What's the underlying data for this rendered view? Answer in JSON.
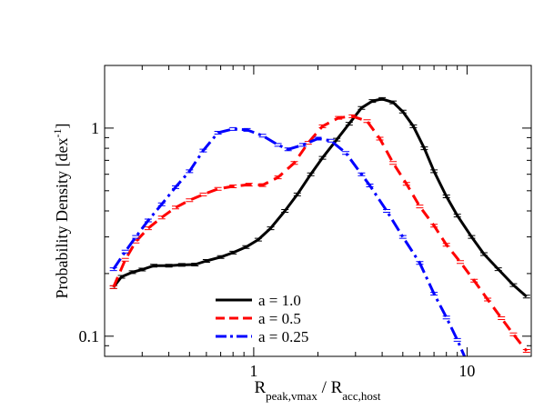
{
  "chart_data": {
    "type": "line",
    "title": "",
    "xlabel": {
      "base": "R",
      "sub1": "peak,vmax",
      "mid": " / R",
      "sub2": "acc,host"
    },
    "ylabel": {
      "text": "Probability Density [dex",
      "sup": "-1",
      "close": "]"
    },
    "x_scale": "log",
    "y_scale": "log",
    "xlim": [
      0.2,
      20
    ],
    "ylim": [
      0.08,
      2.0
    ],
    "grid": false,
    "x_ticks": [
      {
        "value": 1,
        "label": "1"
      },
      {
        "value": 10,
        "label": "10"
      }
    ],
    "y_ticks": [
      {
        "value": 0.1,
        "label": "0.1"
      },
      {
        "value": 1,
        "label": "1"
      }
    ],
    "legend_position": "lower-center",
    "series": [
      {
        "name": "a = 1.0",
        "color": "#000000",
        "style": "solid",
        "points": [
          {
            "x": 0.22,
            "y": 0.172
          },
          {
            "x": 0.24,
            "y": 0.193
          },
          {
            "x": 0.27,
            "y": 0.203
          },
          {
            "x": 0.3,
            "y": 0.209
          },
          {
            "x": 0.34,
            "y": 0.218
          },
          {
            "x": 0.4,
            "y": 0.218
          },
          {
            "x": 0.46,
            "y": 0.22
          },
          {
            "x": 0.53,
            "y": 0.221
          },
          {
            "x": 0.6,
            "y": 0.23
          },
          {
            "x": 0.7,
            "y": 0.24
          },
          {
            "x": 0.8,
            "y": 0.252
          },
          {
            "x": 0.92,
            "y": 0.268
          },
          {
            "x": 1.05,
            "y": 0.291
          },
          {
            "x": 1.2,
            "y": 0.33
          },
          {
            "x": 1.4,
            "y": 0.4
          },
          {
            "x": 1.6,
            "y": 0.48
          },
          {
            "x": 1.85,
            "y": 0.6
          },
          {
            "x": 2.1,
            "y": 0.72
          },
          {
            "x": 2.45,
            "y": 0.88
          },
          {
            "x": 2.8,
            "y": 1.05
          },
          {
            "x": 3.2,
            "y": 1.25
          },
          {
            "x": 3.6,
            "y": 1.35
          },
          {
            "x": 4.0,
            "y": 1.38
          },
          {
            "x": 4.5,
            "y": 1.33
          },
          {
            "x": 5.0,
            "y": 1.2
          },
          {
            "x": 5.6,
            "y": 1.02
          },
          {
            "x": 6.3,
            "y": 0.8
          },
          {
            "x": 7.0,
            "y": 0.62
          },
          {
            "x": 8.0,
            "y": 0.47
          },
          {
            "x": 9.0,
            "y": 0.38
          },
          {
            "x": 10.5,
            "y": 0.3
          },
          {
            "x": 12.0,
            "y": 0.248
          },
          {
            "x": 14.0,
            "y": 0.21
          },
          {
            "x": 16.5,
            "y": 0.176
          },
          {
            "x": 19.0,
            "y": 0.155
          }
        ]
      },
      {
        "name": "a = 0.5",
        "color": "#ff0000",
        "style": "dashed",
        "points": [
          {
            "x": 0.22,
            "y": 0.172
          },
          {
            "x": 0.25,
            "y": 0.233
          },
          {
            "x": 0.28,
            "y": 0.285
          },
          {
            "x": 0.32,
            "y": 0.33
          },
          {
            "x": 0.37,
            "y": 0.372
          },
          {
            "x": 0.43,
            "y": 0.415
          },
          {
            "x": 0.5,
            "y": 0.45
          },
          {
            "x": 0.58,
            "y": 0.48
          },
          {
            "x": 0.68,
            "y": 0.51
          },
          {
            "x": 0.8,
            "y": 0.525
          },
          {
            "x": 0.95,
            "y": 0.535
          },
          {
            "x": 1.1,
            "y": 0.532
          },
          {
            "x": 1.3,
            "y": 0.58
          },
          {
            "x": 1.55,
            "y": 0.68
          },
          {
            "x": 1.8,
            "y": 0.85
          },
          {
            "x": 2.1,
            "y": 1.02
          },
          {
            "x": 2.5,
            "y": 1.12
          },
          {
            "x": 2.9,
            "y": 1.14
          },
          {
            "x": 3.4,
            "y": 1.08
          },
          {
            "x": 3.9,
            "y": 0.89
          },
          {
            "x": 4.5,
            "y": 0.68
          },
          {
            "x": 5.2,
            "y": 0.54
          },
          {
            "x": 6.0,
            "y": 0.42
          },
          {
            "x": 7.0,
            "y": 0.34
          },
          {
            "x": 8.0,
            "y": 0.275
          },
          {
            "x": 9.3,
            "y": 0.227
          },
          {
            "x": 10.8,
            "y": 0.185
          },
          {
            "x": 12.5,
            "y": 0.15
          },
          {
            "x": 14.5,
            "y": 0.122
          },
          {
            "x": 16.5,
            "y": 0.102
          },
          {
            "x": 19.0,
            "y": 0.085
          }
        ]
      },
      {
        "name": "a = 0.25",
        "color": "#0000ff",
        "style": "dash-dot",
        "points": [
          {
            "x": 0.22,
            "y": 0.21
          },
          {
            "x": 0.25,
            "y": 0.255
          },
          {
            "x": 0.28,
            "y": 0.3
          },
          {
            "x": 0.32,
            "y": 0.36
          },
          {
            "x": 0.37,
            "y": 0.43
          },
          {
            "x": 0.43,
            "y": 0.52
          },
          {
            "x": 0.5,
            "y": 0.62
          },
          {
            "x": 0.58,
            "y": 0.78
          },
          {
            "x": 0.68,
            "y": 0.95
          },
          {
            "x": 0.8,
            "y": 0.99
          },
          {
            "x": 0.93,
            "y": 0.98
          },
          {
            "x": 1.1,
            "y": 0.92
          },
          {
            "x": 1.3,
            "y": 0.83
          },
          {
            "x": 1.45,
            "y": 0.79
          },
          {
            "x": 1.7,
            "y": 0.83
          },
          {
            "x": 2.0,
            "y": 0.89
          },
          {
            "x": 2.3,
            "y": 0.87
          },
          {
            "x": 2.7,
            "y": 0.76
          },
          {
            "x": 3.2,
            "y": 0.6
          },
          {
            "x": 3.5,
            "y": 0.53
          },
          {
            "x": 4.2,
            "y": 0.4
          },
          {
            "x": 5.0,
            "y": 0.3
          },
          {
            "x": 6.0,
            "y": 0.225
          },
          {
            "x": 7.0,
            "y": 0.16
          },
          {
            "x": 8.0,
            "y": 0.123
          },
          {
            "x": 9.0,
            "y": 0.096
          },
          {
            "x": 10.0,
            "y": 0.075
          }
        ]
      }
    ]
  }
}
